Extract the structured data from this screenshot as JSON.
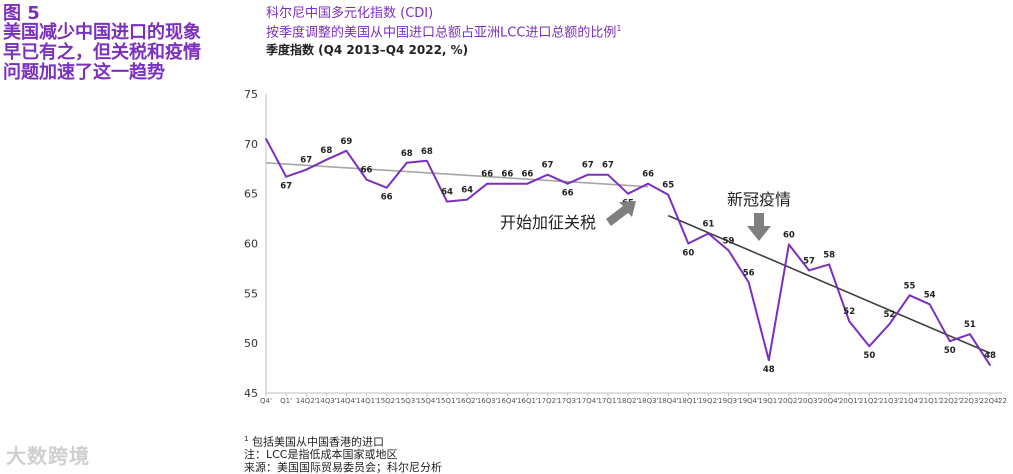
{
  "figure": {
    "number": "图 5",
    "title": "美国减少中国进口的现象早已有之，但关税和疫情问题加速了这一趋势"
  },
  "chart_header": {
    "title": "科尔尼中国多元化指数 (CDI)",
    "subtitle": "按季度调整的美国从中国进口总额占亚洲LCC进口总额的比例",
    "subtitle_sup": "1",
    "unit": "季度指数 (Q4 2013–Q4 2022, %)"
  },
  "footnotes": {
    "note1_sup": "1",
    "note1": "包括美国从中国香港的进口",
    "note2": "注：LCC是指低成本国家或地区",
    "source": "来源：美国国际贸易委员会；科尔尼分析"
  },
  "watermark": "大数跨境",
  "annotations": {
    "tariff": "开始加征关税",
    "covid": "新冠疫情"
  },
  "colors": {
    "series": "#7b2fbf",
    "trend_pre": "#a6a6a6",
    "trend_post": "#404040",
    "arrow": "#7f7f7f",
    "title": "#7b2fbf"
  },
  "chart_data": {
    "type": "line",
    "x": [
      "Q4'13",
      "Q1'14",
      "Q2'14",
      "Q3'14",
      "Q4'14",
      "Q1'15",
      "Q2'15",
      "Q3'15",
      "Q4'15",
      "Q1'16",
      "Q2'16",
      "Q3'16",
      "Q4'16",
      "Q1'17",
      "Q2'17",
      "Q3'17",
      "Q4'17",
      "Q1'18",
      "Q2'18",
      "Q3'18",
      "Q4'18",
      "Q1'19",
      "Q2'19",
      "Q3'19",
      "Q4'19",
      "Q1'20",
      "Q2'20",
      "Q3'20",
      "Q4'20",
      "Q1'21",
      "Q2'21",
      "Q3'21",
      "Q4'21",
      "Q1'22",
      "Q2'22",
      "Q3'22",
      "Q4'22"
    ],
    "x_tick_labels": [
      "Q4'",
      "Q1'",
      "14Q2'",
      "14Q3'",
      "14Q4'",
      "14Q1'",
      "15Q2'",
      "15Q3'",
      "15Q4'",
      "15Q1'",
      "16Q2'",
      "16Q3'",
      "16Q4'",
      "16Q1'",
      "17Q2'",
      "17Q3'",
      "17Q4'",
      "17Q1'",
      "18Q2'",
      "18Q3'",
      "18Q4'",
      "18Q1'",
      "19Q2'",
      "19Q3'",
      "19Q4'",
      "19Q1'",
      "20Q2'",
      "20Q3'",
      "20Q4'",
      "20Q1'",
      "21Q2'",
      "21Q3'",
      "21Q4'",
      "21Q1'",
      "22Q2'",
      "22Q3'",
      "22Q4'"
    ],
    "x_tick_last": "22",
    "series": [
      {
        "values": [
          70.5,
          66.7,
          67.4,
          68.4,
          69.3,
          66.4,
          65.6,
          68.1,
          68.3,
          64.2,
          64.4,
          66.0,
          66.0,
          66.0,
          66.9,
          66.0,
          66.9,
          66.9,
          65.0,
          66.0,
          64.9,
          60.0,
          61.0,
          59.3,
          56.1,
          48.3,
          59.9,
          57.3,
          57.9,
          52.2,
          49.7,
          51.9,
          54.8,
          53.9,
          50.2,
          50.9,
          47.8
        ],
        "labels": [
          "",
          "67",
          "67",
          "68",
          "69",
          "66",
          "66",
          "68",
          "68",
          "64",
          "64",
          "66",
          "66",
          "66",
          "67",
          "66",
          "67",
          "67",
          "65",
          "66",
          "65",
          "60",
          "61",
          "59",
          "56",
          "48",
          "60",
          "57",
          "58",
          "52",
          "50",
          "52",
          "55",
          "54",
          "50",
          "51",
          "48"
        ]
      }
    ],
    "trend_lines": [
      {
        "from": [
          0,
          68.1
        ],
        "to": [
          19,
          65.7
        ]
      },
      {
        "from": [
          20,
          62.8
        ],
        "to": [
          36,
          49.0
        ]
      }
    ],
    "ylim": [
      45,
      75
    ],
    "yticks": [
      45,
      50,
      55,
      60,
      65,
      70,
      75
    ],
    "grid": false
  }
}
